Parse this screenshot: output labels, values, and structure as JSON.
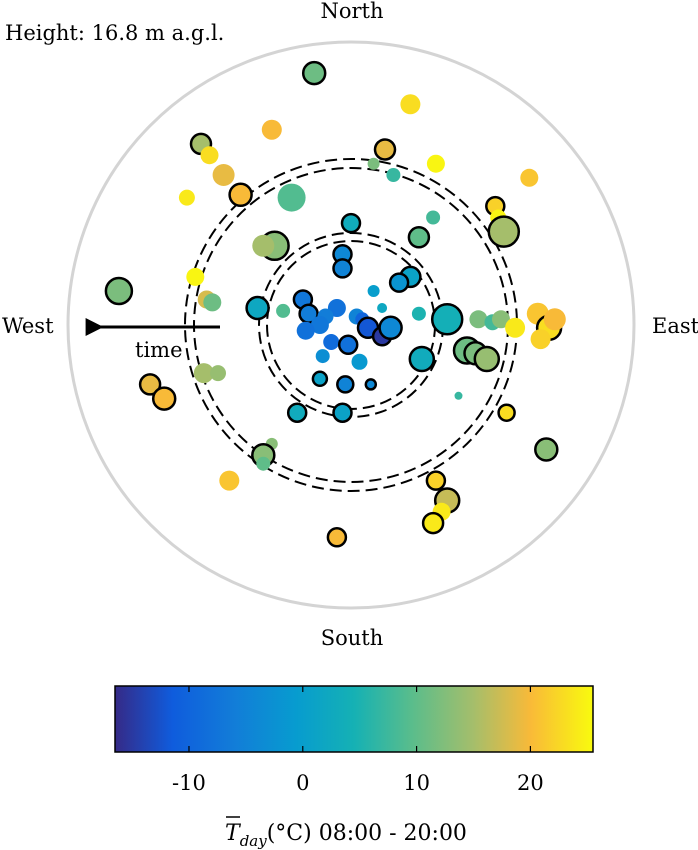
{
  "chart_data": {
    "type": "scatter",
    "subtype": "polar-wind-rose-bubble",
    "height_label": "Height: 16.8 m a.g.l.",
    "directions": {
      "north": "North",
      "south": "South",
      "east": "East",
      "west": "West"
    },
    "arrow_label": "time",
    "colorbar": {
      "min": -16.5,
      "max": 25.5,
      "ticks": [
        -10,
        0,
        10,
        20
      ],
      "tick_labels": [
        "-10",
        "0",
        "10",
        "20"
      ],
      "label": "T̅day(°C) 08:00 - 20:00",
      "label_T": "T",
      "label_sub": "day",
      "label_rest": "(°C) 08:00 - 20:00",
      "colormap": "parula"
    },
    "dashed_rings": [
      0.57,
      0.58,
      0.92,
      0.93
    ],
    "points": [
      {
        "x": -0.13,
        "y": 0.89,
        "s": 11,
        "t": 11,
        "e": 1
      },
      {
        "x": 0.21,
        "y": 0.78,
        "s": 10,
        "t": 23
      },
      {
        "x": 0.12,
        "y": 0.62,
        "s": 10,
        "t": 19,
        "e": 1
      },
      {
        "x": -0.28,
        "y": 0.69,
        "s": 10,
        "t": 20
      },
      {
        "x": -0.53,
        "y": 0.64,
        "s": 10,
        "t": 15,
        "e": 1
      },
      {
        "x": -0.5,
        "y": 0.6,
        "s": 9,
        "t": 23
      },
      {
        "x": -0.45,
        "y": 0.53,
        "s": 11,
        "t": 19
      },
      {
        "x": -0.39,
        "y": 0.46,
        "s": 11,
        "t": 20,
        "e": 1
      },
      {
        "x": -0.58,
        "y": 0.45,
        "s": 8,
        "t": 24
      },
      {
        "x": -0.21,
        "y": 0.45,
        "s": 14,
        "t": 9
      },
      {
        "x": 0.08,
        "y": 0.57,
        "s": 6,
        "t": 12
      },
      {
        "x": 0.15,
        "y": 0.53,
        "s": 7,
        "t": 7
      },
      {
        "x": 0.3,
        "y": 0.57,
        "s": 9,
        "t": 25
      },
      {
        "x": 0.63,
        "y": 0.52,
        "s": 9,
        "t": 21
      },
      {
        "x": 0.51,
        "y": 0.42,
        "s": 9,
        "t": 22,
        "e": 1
      },
      {
        "x": 0.52,
        "y": 0.38,
        "s": 8,
        "t": 25
      },
      {
        "x": 0.54,
        "y": 0.33,
        "s": 15,
        "t": 15,
        "e": 1
      },
      {
        "x": 0.29,
        "y": 0.38,
        "s": 7,
        "t": 8
      },
      {
        "x": 0.24,
        "y": 0.31,
        "s": 10,
        "t": 10,
        "e": 1
      },
      {
        "x": 0.0,
        "y": 0.36,
        "s": 9,
        "t": 3,
        "e": 1
      },
      {
        "x": -0.27,
        "y": 0.28,
        "s": 14,
        "t": 13,
        "e": 1
      },
      {
        "x": -0.31,
        "y": 0.28,
        "s": 11,
        "t": 15
      },
      {
        "x": -0.55,
        "y": 0.17,
        "s": 9,
        "t": 25
      },
      {
        "x": -0.51,
        "y": 0.09,
        "s": 9,
        "t": 18
      },
      {
        "x": -0.49,
        "y": 0.08,
        "s": 9,
        "t": 11
      },
      {
        "x": -0.82,
        "y": 0.12,
        "s": 13,
        "t": 12,
        "e": 1
      },
      {
        "x": -0.33,
        "y": 0.06,
        "s": 11,
        "t": 2,
        "e": 1
      },
      {
        "x": -0.24,
        "y": 0.05,
        "s": 7,
        "t": 9
      },
      {
        "x": -0.03,
        "y": 0.25,
        "s": 9,
        "t": -4,
        "e": 1
      },
      {
        "x": -0.03,
        "y": 0.2,
        "s": 9,
        "t": -5,
        "e": 1
      },
      {
        "x": 0.08,
        "y": 0.12,
        "s": 6,
        "t": 0
      },
      {
        "x": 0.21,
        "y": 0.17,
        "s": 10,
        "t": 1,
        "e": 1
      },
      {
        "x": 0.17,
        "y": 0.15,
        "s": 9,
        "t": -2,
        "e": 1
      },
      {
        "x": 0.11,
        "y": 0.06,
        "s": 5,
        "t": 2
      },
      {
        "x": 0.24,
        "y": 0.04,
        "s": 7,
        "t": 5
      },
      {
        "x": 0.34,
        "y": 0.02,
        "s": 15,
        "t": 4,
        "e": 1
      },
      {
        "x": 0.45,
        "y": 0.02,
        "s": 9,
        "t": 12
      },
      {
        "x": 0.5,
        "y": 0.01,
        "s": 8,
        "t": 8
      },
      {
        "x": 0.53,
        "y": 0.02,
        "s": 9,
        "t": 13
      },
      {
        "x": 0.58,
        "y": -0.01,
        "s": 10,
        "t": 24
      },
      {
        "x": 0.66,
        "y": 0.04,
        "s": 11,
        "t": 21
      },
      {
        "x": 0.7,
        "y": -0.01,
        "s": 12,
        "t": 23,
        "e": 1
      },
      {
        "x": 0.72,
        "y": 0.02,
        "s": 11,
        "t": 20
      },
      {
        "x": 0.67,
        "y": -0.05,
        "s": 10,
        "t": 22
      },
      {
        "x": -0.17,
        "y": 0.09,
        "s": 9,
        "t": -7,
        "e": 1
      },
      {
        "x": -0.15,
        "y": 0.04,
        "s": 9,
        "t": -6,
        "e": 1
      },
      {
        "x": -0.05,
        "y": 0.06,
        "s": 9,
        "t": -8
      },
      {
        "x": -0.09,
        "y": 0.03,
        "s": 8,
        "t": -6
      },
      {
        "x": -0.11,
        "y": 0.0,
        "s": 9,
        "t": -7
      },
      {
        "x": 0.02,
        "y": 0.03,
        "s": 8,
        "t": -5
      },
      {
        "x": 0.04,
        "y": 0.02,
        "s": 7,
        "t": -10
      },
      {
        "x": 0.06,
        "y": -0.01,
        "s": 10,
        "t": -12,
        "e": 1
      },
      {
        "x": 0.11,
        "y": -0.04,
        "s": 9,
        "t": -15,
        "e": 1
      },
      {
        "x": 0.14,
        "y": -0.01,
        "s": 11,
        "t": -4,
        "e": 1
      },
      {
        "x": -0.16,
        "y": -0.02,
        "s": 9,
        "t": -8
      },
      {
        "x": -0.07,
        "y": -0.06,
        "s": 8,
        "t": -9
      },
      {
        "x": -0.01,
        "y": -0.07,
        "s": 9,
        "t": -8,
        "e": 1
      },
      {
        "x": -0.1,
        "y": -0.11,
        "s": 7,
        "t": -3
      },
      {
        "x": 0.03,
        "y": -0.13,
        "s": 8,
        "t": -1
      },
      {
        "x": 0.25,
        "y": -0.12,
        "s": 12,
        "t": 3,
        "e": 1
      },
      {
        "x": 0.41,
        "y": -0.09,
        "s": 13,
        "t": 11,
        "e": 1
      },
      {
        "x": 0.44,
        "y": -0.1,
        "s": 11,
        "t": 12,
        "e": 1
      },
      {
        "x": 0.48,
        "y": -0.12,
        "s": 12,
        "t": 14,
        "e": 1
      },
      {
        "x": -0.11,
        "y": -0.19,
        "s": 7,
        "t": 1,
        "e": 1
      },
      {
        "x": -0.02,
        "y": -0.21,
        "s": 8,
        "t": -5,
        "e": 1
      },
      {
        "x": 0.07,
        "y": -0.21,
        "s": 5,
        "t": -4,
        "e": 1
      },
      {
        "x": -0.19,
        "y": -0.31,
        "s": 9,
        "t": 3,
        "e": 1
      },
      {
        "x": -0.03,
        "y": -0.31,
        "s": 9,
        "t": 1,
        "e": 1
      },
      {
        "x": 0.38,
        "y": -0.25,
        "s": 4,
        "t": 7
      },
      {
        "x": 0.55,
        "y": -0.31,
        "s": 8,
        "t": 23,
        "e": 1
      },
      {
        "x": -0.52,
        "y": -0.17,
        "s": 10,
        "t": 15
      },
      {
        "x": -0.47,
        "y": -0.17,
        "s": 8,
        "t": 14
      },
      {
        "x": -0.71,
        "y": -0.21,
        "s": 10,
        "t": 19,
        "e": 1
      },
      {
        "x": -0.66,
        "y": -0.26,
        "s": 11,
        "t": 20,
        "e": 1
      },
      {
        "x": -0.28,
        "y": -0.42,
        "s": 6,
        "t": 13
      },
      {
        "x": -0.31,
        "y": -0.46,
        "s": 11,
        "t": 13,
        "e": 1
      },
      {
        "x": -0.31,
        "y": -0.49,
        "s": 7,
        "t": 10
      },
      {
        "x": -0.43,
        "y": -0.55,
        "s": 10,
        "t": 21
      },
      {
        "x": 0.3,
        "y": -0.55,
        "s": 9,
        "t": 22,
        "e": 1
      },
      {
        "x": 0.34,
        "y": -0.62,
        "s": 12,
        "t": 17,
        "e": 1
      },
      {
        "x": 0.32,
        "y": -0.66,
        "s": 9,
        "t": 24
      },
      {
        "x": 0.29,
        "y": -0.7,
        "s": 10,
        "t": 24,
        "e": 1
      },
      {
        "x": 0.69,
        "y": -0.44,
        "s": 11,
        "t": 13,
        "e": 1
      },
      {
        "x": -0.05,
        "y": -0.75,
        "s": 9,
        "t": 20,
        "e": 1
      }
    ]
  }
}
